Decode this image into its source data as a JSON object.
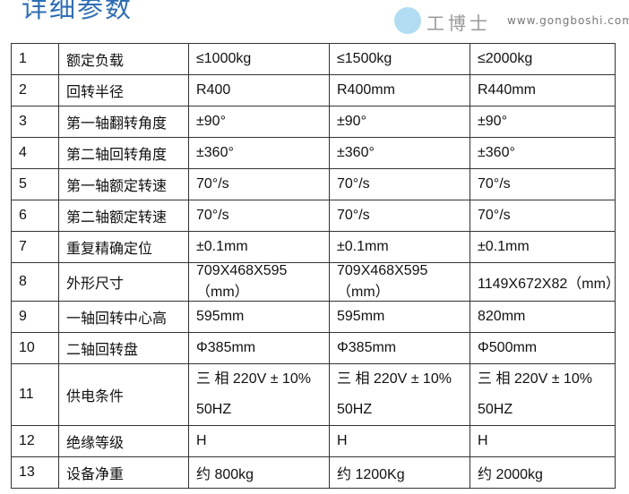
{
  "title": "详细参数",
  "rows": [
    [
      "1",
      "额定负载",
      "≤1000kg",
      "≤1500kg",
      "≤2000kg"
    ],
    [
      "2",
      "回转半径",
      "R400",
      "R400mm",
      "R440mm"
    ],
    [
      "3",
      "第一轴翻转角度",
      "±90°",
      "±90°",
      "±90°"
    ],
    [
      "4",
      "第二轴回转角度",
      "±360°",
      "±360°",
      "±360°"
    ],
    [
      "5",
      "第一轴额定转速",
      "70°/s",
      "70°/s",
      "70°/s"
    ],
    [
      "6",
      "第二轴额定转速",
      "70°/s",
      "70°/s",
      "70°/s"
    ],
    [
      "7",
      "重复精确定位",
      "±0.1mm",
      "±0.1mm",
      "±0.1mm"
    ],
    [
      "8",
      "外形尺寸",
      "709X468X595（mm）",
      "709X468X595（mm）",
      "1149X672X82（mm）"
    ],
    [
      "9",
      "一轴回转中心高",
      "595mm",
      "595mm",
      "820mm"
    ],
    [
      "10",
      "二轴回转盘",
      "Φ385mm",
      "Φ385mm",
      "Φ500mm"
    ],
    [
      "11",
      "供电条件",
      "三 相 220V ± 10% 50HZ",
      "三 相 220V ± 10% 50HZ",
      "三 相 220V ± 10% 50HZ"
    ],
    [
      "12",
      "绝缘等级",
      "H",
      "H",
      "H"
    ],
    [
      "13",
      "设备净重",
      "约 800kg",
      "约 1200Kg",
      "约 2000kg"
    ]
  ],
  "watermark": {
    "brand": "工博士",
    "url": "www.gongboshi.com"
  }
}
